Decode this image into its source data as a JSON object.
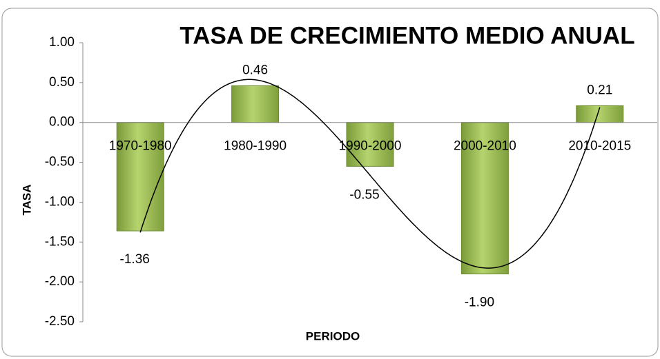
{
  "chart_data": {
    "type": "bar",
    "title": "TASA DE CRECIMIENTO MEDIO ANUAL",
    "x_label": "PERIODO",
    "y_label": "TASA",
    "categories": [
      "1970-1980",
      "1980-1990",
      "1990-2000",
      "2000-2010",
      "2010-2015"
    ],
    "values": [
      -1.36,
      0.46,
      -0.55,
      -1.9,
      0.21
    ],
    "value_labels": [
      "-1.36",
      "0.46",
      "-0.55",
      "-1.90",
      "0.21"
    ],
    "color": "#9bbb59",
    "trendline": {
      "type": "polynomial",
      "order": 3
    },
    "ylim": [
      -2.5,
      1
    ],
    "yticks": [
      {
        "value": -2.5,
        "label": "-2.50"
      },
      {
        "value": -2,
        "label": "-2.00"
      },
      {
        "value": -1.5,
        "label": "-1.50"
      },
      {
        "value": -1,
        "label": "-1.00"
      },
      {
        "value": -0.5,
        "label": "-0.50"
      },
      {
        "value": 0,
        "label": "0.00"
      },
      {
        "value": 0.5,
        "label": "0.50"
      },
      {
        "value": 1,
        "label": "1.00"
      }
    ]
  }
}
